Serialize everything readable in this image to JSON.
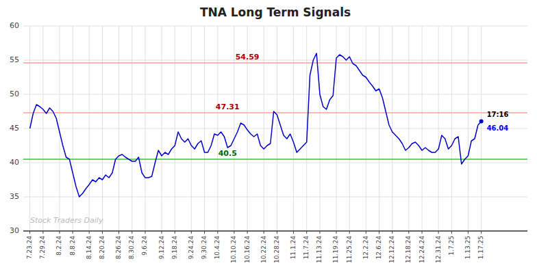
{
  "chart_data": {
    "type": "line",
    "title": "TNA Long Term Signals",
    "color": "#0000cc",
    "grid": true,
    "ylim": [
      30,
      60
    ],
    "yticks": [
      30,
      35,
      40,
      45,
      50,
      55,
      60
    ],
    "categories": [
      "7.23.24",
      null,
      null,
      null,
      "7.29.24",
      null,
      null,
      null,
      null,
      "8.2.24",
      null,
      null,
      null,
      "8.8.24",
      null,
      null,
      null,
      null,
      "8.14.24",
      null,
      null,
      null,
      "8.20.24",
      null,
      null,
      null,
      null,
      "8.26.24",
      null,
      null,
      null,
      "8.30.24",
      null,
      null,
      null,
      "9.6.24",
      null,
      null,
      null,
      null,
      "9.12.24",
      null,
      null,
      null,
      "9.18.24",
      null,
      null,
      null,
      null,
      "9.24.24",
      null,
      null,
      null,
      "9.30.24",
      null,
      null,
      null,
      "10.4.24",
      null,
      null,
      null,
      null,
      "10.10.24",
      null,
      null,
      null,
      "10.16.24",
      null,
      null,
      null,
      null,
      "10.22.24",
      null,
      null,
      null,
      "10.28.24",
      null,
      null,
      null,
      null,
      "11.1.24",
      null,
      null,
      null,
      "11.7.24",
      null,
      null,
      null,
      "11.13.24",
      null,
      null,
      null,
      null,
      "11.19.24",
      null,
      null,
      null,
      "11.25.24",
      null,
      null,
      null,
      null,
      "12.2.24",
      null,
      null,
      null,
      "12.6.24",
      null,
      null,
      null,
      "12.12.24",
      null,
      null,
      null,
      null,
      "12.18.24",
      null,
      null,
      null,
      "12.24.24",
      null,
      null,
      null,
      null,
      "12.31.24",
      null,
      null,
      null,
      "1.7.25",
      null,
      null,
      null,
      null,
      "1.13.25",
      null,
      null,
      null,
      "1.17.25"
    ],
    "values": [
      45.0,
      47.2,
      48.5,
      48.2,
      47.8,
      47.2,
      48.0,
      47.5,
      46.5,
      44.5,
      42.5,
      40.8,
      40.5,
      38.5,
      36.5,
      35.0,
      35.5,
      36.2,
      36.8,
      37.5,
      37.2,
      37.8,
      37.5,
      38.2,
      37.8,
      38.5,
      40.5,
      41.0,
      41.2,
      40.8,
      40.5,
      40.2,
      40.2,
      40.8,
      38.5,
      37.8,
      37.8,
      38.0,
      40.0,
      41.8,
      41.0,
      41.5,
      41.2,
      42.0,
      42.5,
      44.5,
      43.5,
      43.0,
      43.5,
      42.5,
      42.0,
      42.8,
      43.2,
      41.5,
      41.5,
      42.5,
      44.2,
      44.0,
      44.5,
      43.8,
      42.2,
      42.5,
      43.5,
      44.5,
      45.8,
      45.5,
      44.8,
      44.2,
      43.8,
      44.2,
      42.5,
      42.0,
      42.5,
      42.8,
      47.5,
      47.0,
      45.5,
      44.0,
      43.5,
      44.2,
      43.0,
      41.5,
      42.0,
      42.5,
      43.0,
      52.8,
      55.0,
      56.0,
      50.0,
      48.2,
      47.8,
      49.2,
      49.8,
      55.3,
      55.8,
      55.5,
      55.0,
      55.5,
      54.5,
      54.2,
      53.5,
      52.8,
      52.5,
      51.8,
      51.2,
      50.5,
      50.8,
      49.5,
      47.5,
      45.5,
      44.5,
      44.0,
      43.5,
      42.8,
      41.8,
      42.2,
      42.8,
      43.0,
      42.5,
      41.8,
      42.2,
      41.8,
      41.5,
      41.5,
      42.0,
      44.0,
      43.5,
      42.0,
      42.5,
      43.5,
      43.8,
      39.8,
      40.5,
      41.0,
      43.2,
      43.5,
      45.5,
      46.04
    ],
    "hlines": [
      {
        "value": 54.59,
        "label": "54.59",
        "color": "#f4a0a0",
        "label_color": "#aa0000"
      },
      {
        "value": 47.31,
        "label": "47.31",
        "color": "#f4a0a0",
        "label_color": "#aa0000"
      },
      {
        "value": 40.5,
        "label": "40.5",
        "color": "#44bb44",
        "label_color": "#006600"
      }
    ],
    "annotations": [
      {
        "text": "17:16",
        "color": "#000000"
      },
      {
        "text": "46.04",
        "color": "#0000ff"
      }
    ],
    "watermark": {
      "text": "Stock Traders Daily",
      "color": "#bbbbbb"
    }
  }
}
